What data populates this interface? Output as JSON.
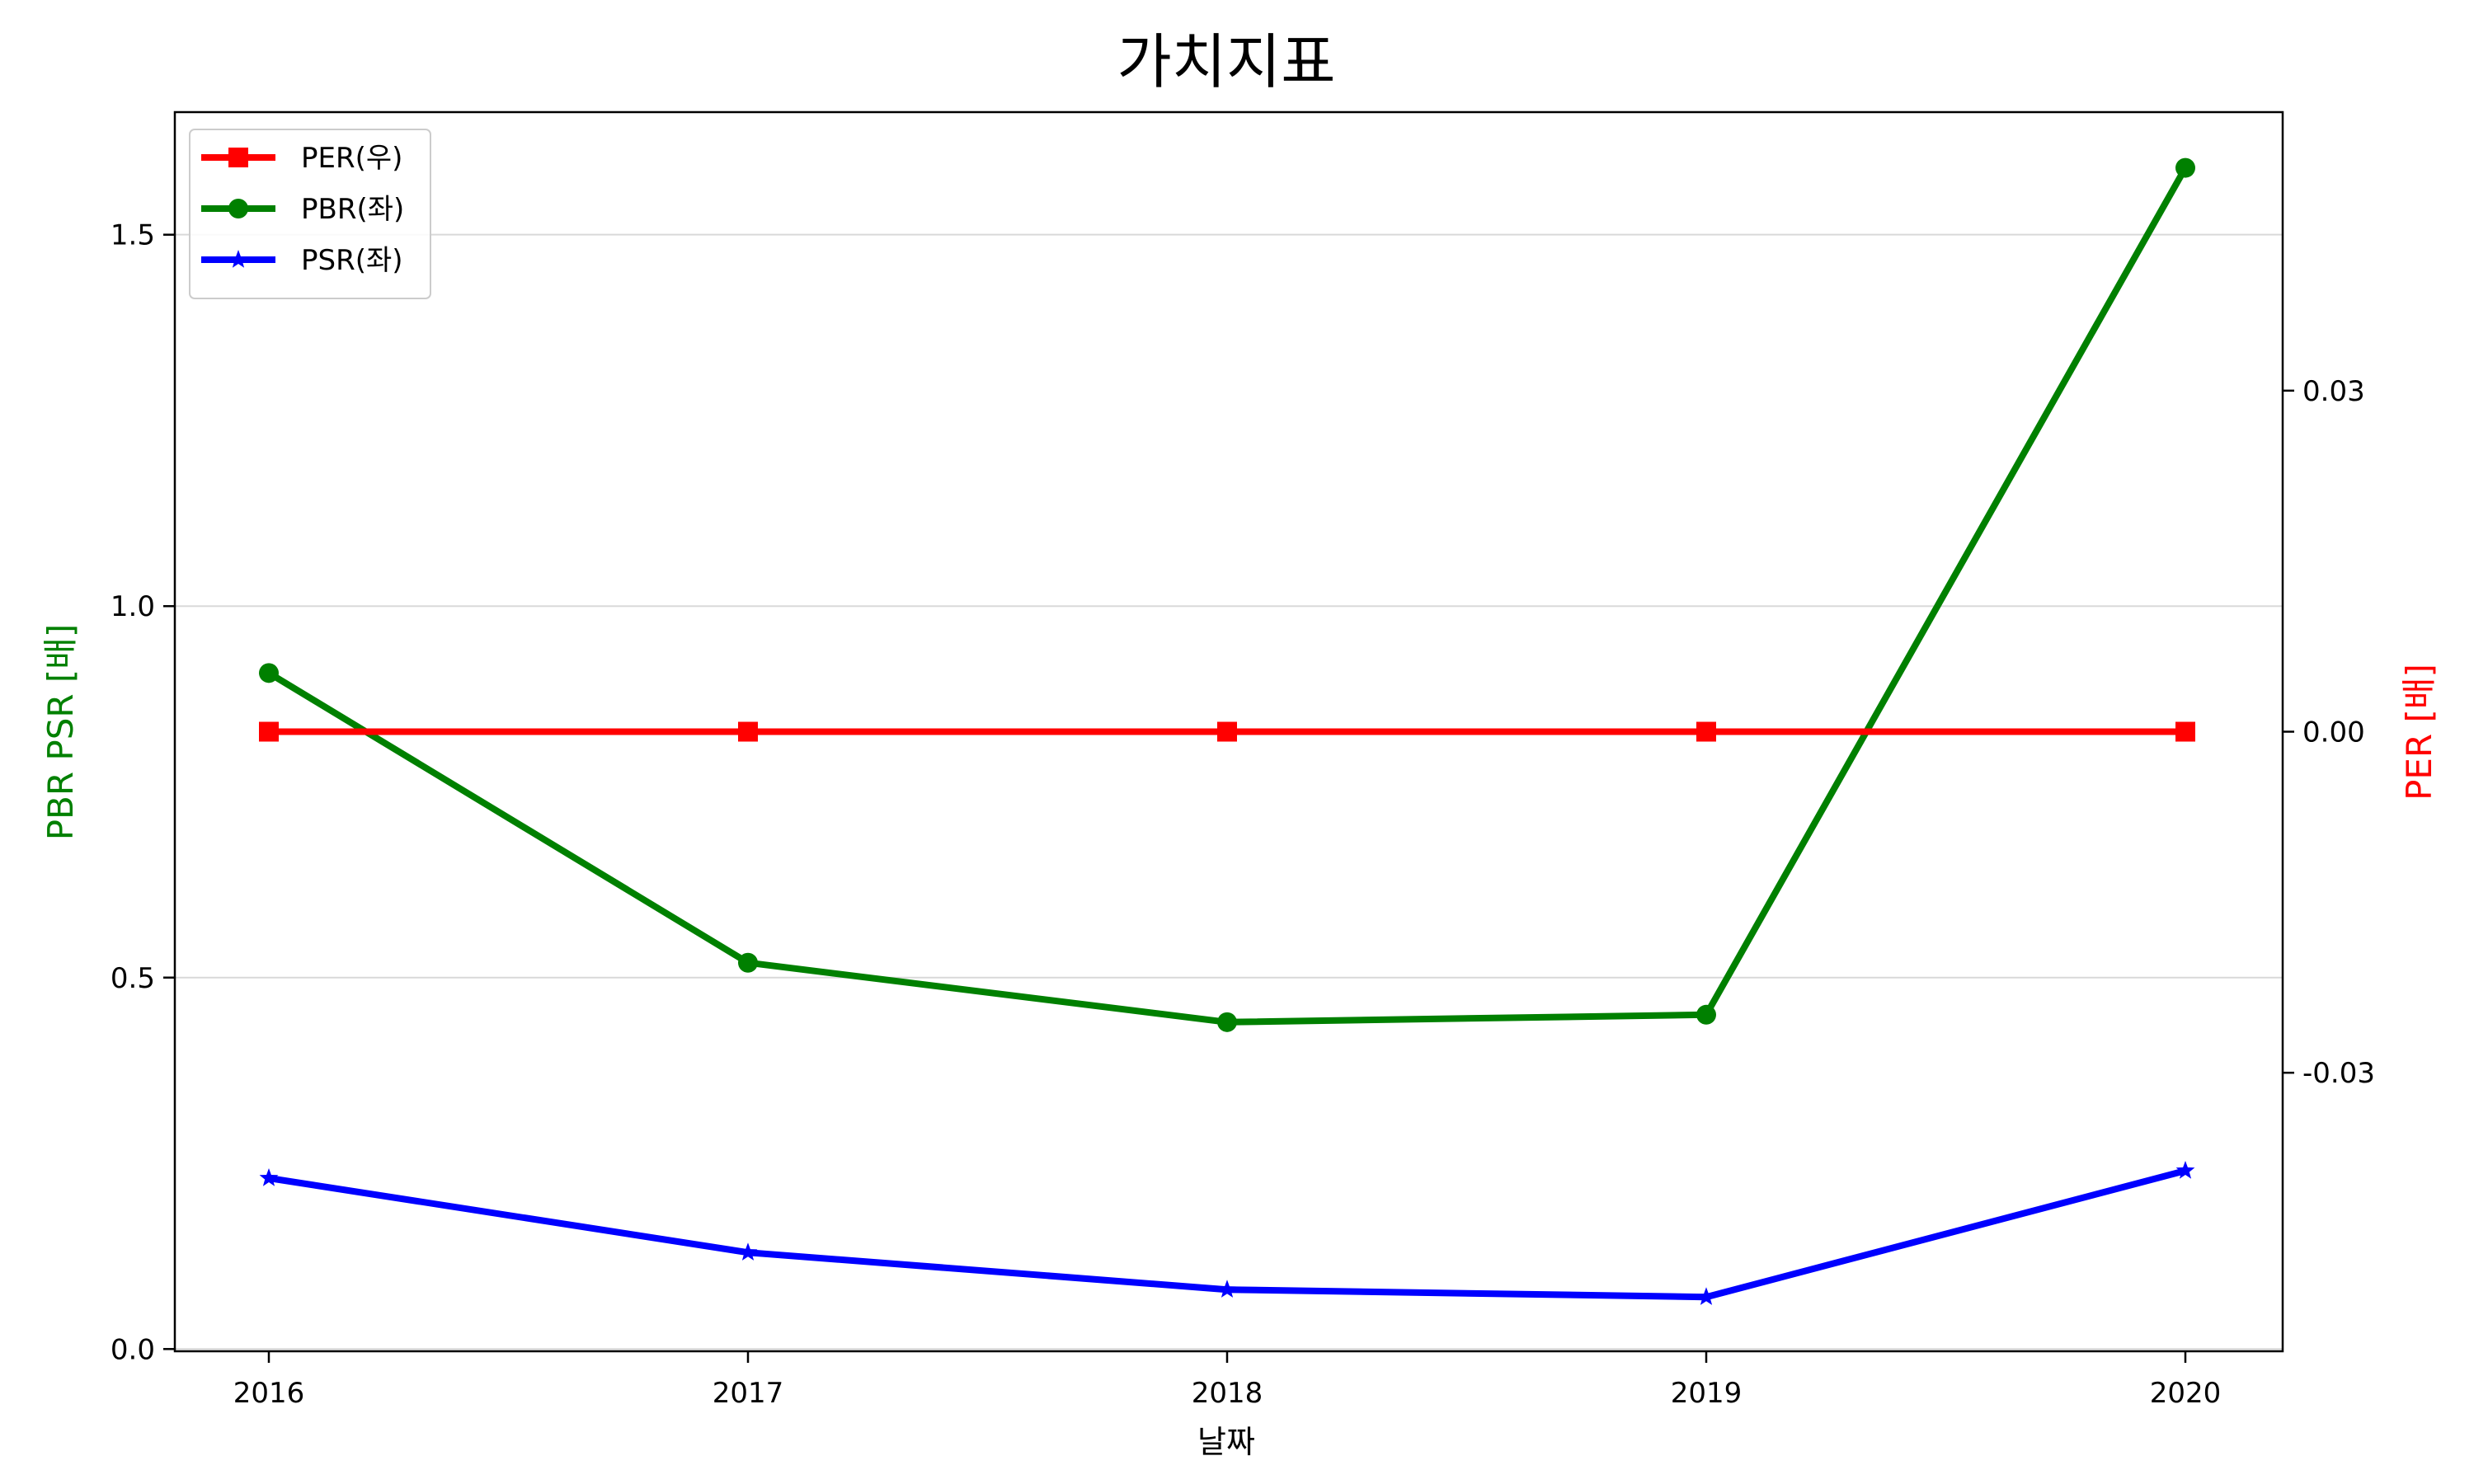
{
  "chart_data": {
    "type": "line",
    "title": "가치지표",
    "xlabel": "날짜",
    "ylabel_left": "PBR PSR [배]",
    "ylabel_right": "PER [배]",
    "categories": [
      "2016",
      "2017",
      "2018",
      "2019",
      "2020"
    ],
    "ylim_left": [
      -0.003,
      1.665
    ],
    "yticks_left": [
      0.0,
      0.5,
      1.0,
      1.5
    ],
    "ytick_labels_left": [
      "0.0",
      "0.5",
      "1.0",
      "1.5"
    ],
    "ylim_right": [
      -0.0545,
      0.0545
    ],
    "yticks_right": [
      -0.03,
      0.0,
      0.03
    ],
    "ytick_labels_right": [
      "-0.03",
      "0.00",
      "0.03"
    ],
    "grid": "horizontal",
    "legend_position": "top-left",
    "series": [
      {
        "name": "PER(우)",
        "axis": "right",
        "color": "#ff0000",
        "marker": "square",
        "values": [
          0,
          0,
          0,
          0,
          0
        ]
      },
      {
        "name": "PBR(좌)",
        "axis": "left",
        "color": "#008000",
        "marker": "circle",
        "values": [
          0.91,
          0.52,
          0.44,
          0.45,
          1.59
        ]
      },
      {
        "name": "PSR(좌)",
        "axis": "left",
        "color": "#0000ff",
        "marker": "star",
        "values": [
          0.23,
          0.13,
          0.08,
          0.07,
          0.24
        ]
      }
    ],
    "colors": {
      "left_axis_label": "#008000",
      "right_axis_label": "#ff0000"
    }
  }
}
